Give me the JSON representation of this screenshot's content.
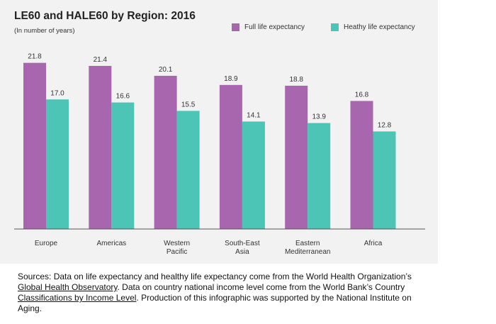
{
  "colors": {
    "panel_bg": "#f2f2f2",
    "series_full": "#a866ae",
    "series_healthy": "#4cc4b6",
    "axis": "#555555"
  },
  "chart_data": {
    "type": "bar",
    "title": "LE60 and HALE60 by Region: 2016",
    "subtitle": "(In number of years)",
    "xlabel": "",
    "ylabel": "",
    "ylim": [
      0,
      24
    ],
    "grid": false,
    "legend_position": "top-right",
    "categories": [
      [
        "Europe"
      ],
      [
        "Americas"
      ],
      [
        "Western",
        "Pacific"
      ],
      [
        "South-East",
        "Asia"
      ],
      [
        "Eastern",
        "Mediterranean"
      ],
      [
        "Africa"
      ]
    ],
    "series": [
      {
        "name": "Full life expectancy",
        "color": "#a866ae",
        "values": [
          21.8,
          21.4,
          20.1,
          18.9,
          18.8,
          16.8
        ],
        "labels": [
          "21.8",
          "21.4",
          "20.1",
          "18.9",
          "18.8",
          "16.8"
        ]
      },
      {
        "name": "Heathy life expectancy",
        "color": "#4cc4b6",
        "values": [
          17.0,
          16.6,
          15.5,
          14.1,
          13.9,
          12.8
        ],
        "labels": [
          "17.0",
          "16.6",
          "15.5",
          "14.1",
          "13.9",
          "12.8"
        ]
      }
    ]
  },
  "sources": {
    "prefix": "Sources: Data on life expectancy and healthy life expectancy come from the World Health Organization’s ",
    "link1": "Global Health Observatory",
    "middle": ". Data on country national income level come from the World Bank’s Country ",
    "link2": "Classifications by Income Level",
    "suffix": ". Production of this infographic was supported by the National Institute on Aging."
  }
}
